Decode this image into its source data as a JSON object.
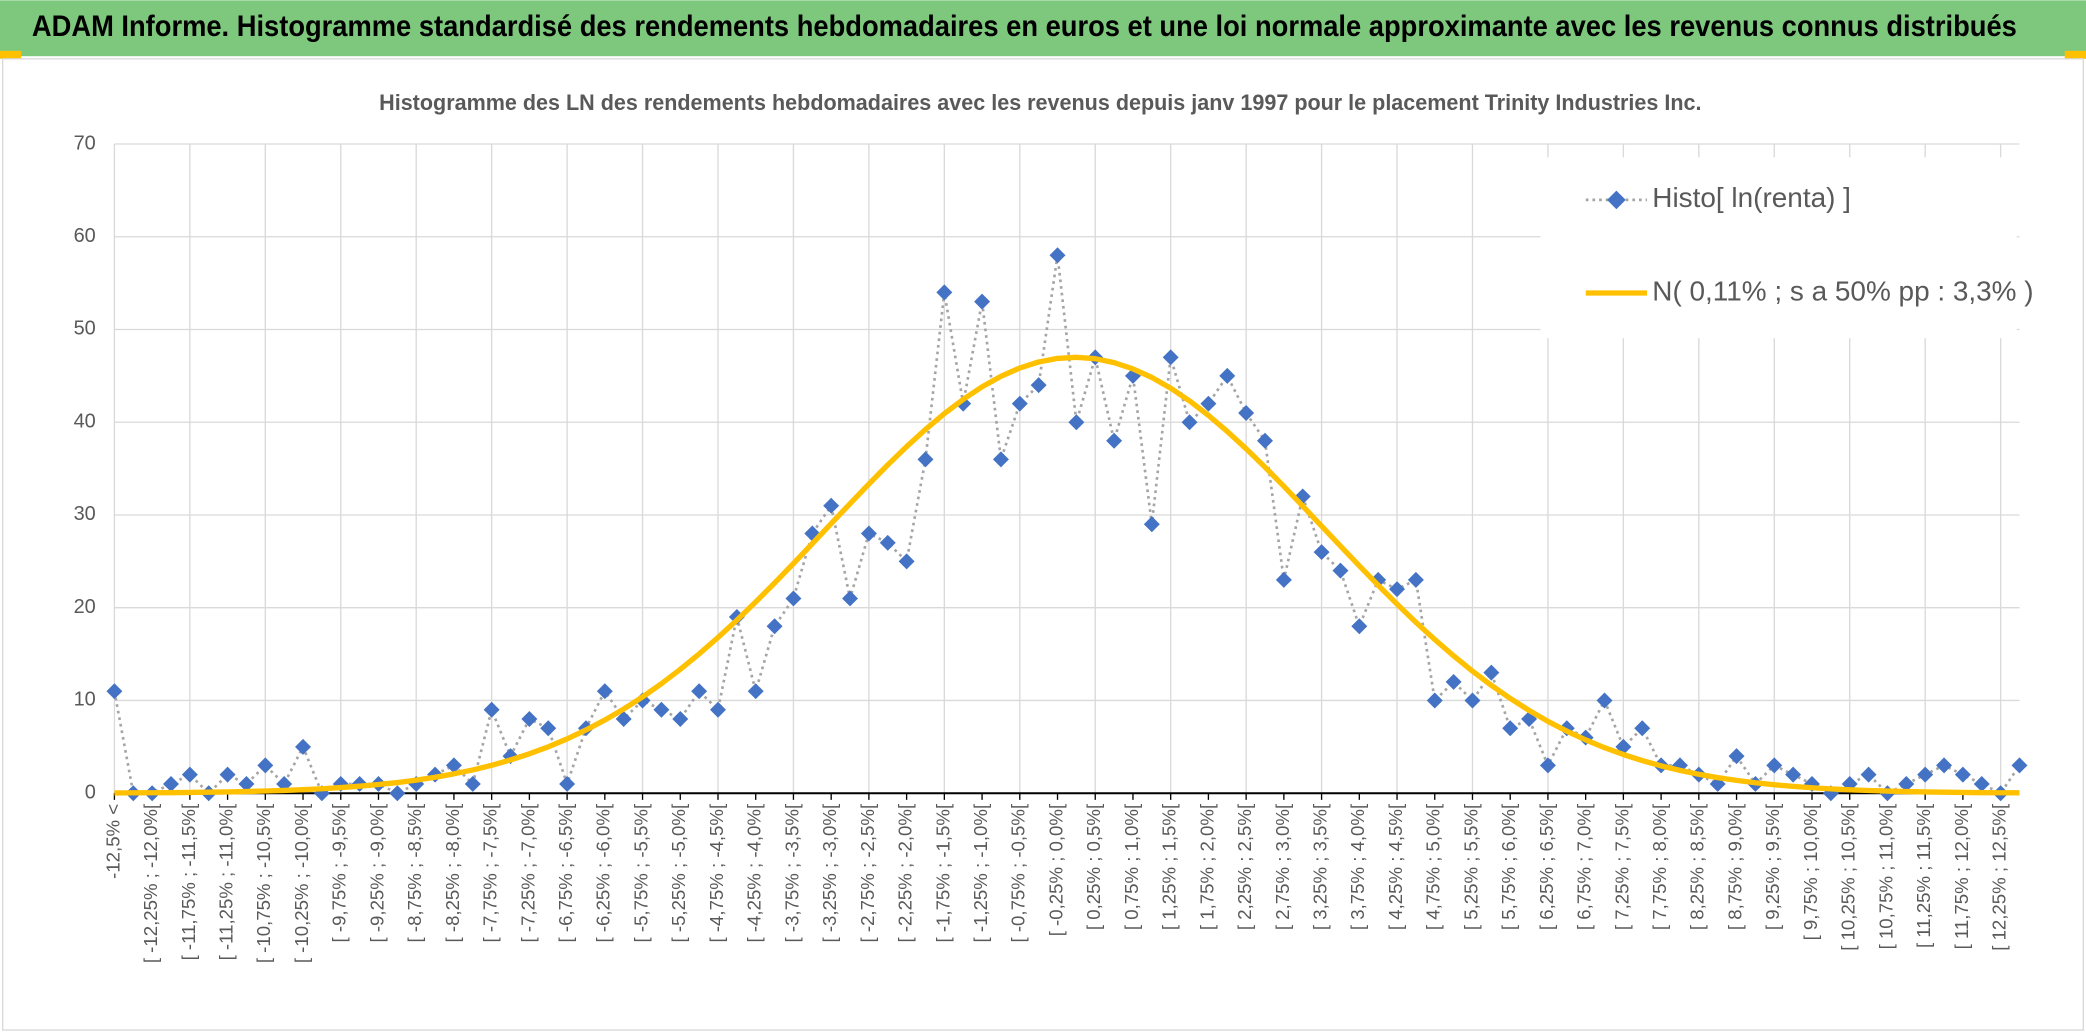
{
  "chart_data": {
    "type": "line",
    "page_title": "ADAM Informe. Histogramme standardisé des rendements hebdomadaires en euros et une loi normale approximante avec les revenus connus distribués",
    "title": "Histogramme des LN des rendements hebdomadaires avec les revenus depuis janv 1997 pour le placement Trinity Industries Inc.",
    "categories": [
      "-12,5% <",
      null,
      "[ -12,25% ; -12,0%[",
      null,
      "[ -11,75% ; -11,5%[",
      null,
      "[ -11,25% ; -11,0%[",
      null,
      "[ -10,75% ; -10,5%[",
      null,
      "[ -10,25% ; -10,0%[",
      null,
      "[ -9,75% ; -9,5%[",
      null,
      "[ -9,25% ; -9,0%[",
      null,
      "[ -8,75% ; -8,5%[",
      null,
      "[ -8,25% ; -8,0%[",
      null,
      "[ -7,75% ; -7,5%[",
      null,
      "[ -7,25% ; -7,0%[",
      null,
      "[ -6,75% ; -6,5%[",
      null,
      "[ -6,25% ; -6,0%[",
      null,
      "[ -5,75% ; -5,5%[",
      null,
      "[ -5,25% ; -5,0%[",
      null,
      "[ -4,75% ; -4,5%[",
      null,
      "[ -4,25% ; -4,0%[",
      null,
      "[ -3,75% ; -3,5%[",
      null,
      "[ -3,25% ; -3,0%[",
      null,
      "[ -2,75% ; -2,5%[",
      null,
      "[ -2,25% ; -2,0%[",
      null,
      "[ -1,75% ; -1,5%[",
      null,
      "[ -1,25% ; -1,0%[",
      null,
      "[ -0,75% ; -0,5%[",
      null,
      "[ -0,25% ; 0,0%[",
      null,
      "[ 0,25% ; 0,5%[",
      null,
      "[ 0,75% ; 1,0%[",
      null,
      "[ 1,25% ; 1,5%[",
      null,
      "[ 1,75% ; 2,0%[",
      null,
      "[ 2,25% ; 2,5%[",
      null,
      "[ 2,75% ; 3,0%[",
      null,
      "[ 3,25% ; 3,5%[",
      null,
      "[ 3,75% ; 4,0%[",
      null,
      "[ 4,25% ; 4,5%[",
      null,
      "[ 4,75% ; 5,0%[",
      null,
      "[ 5,25% ; 5,5%[",
      null,
      "[ 5,75% ; 6,0%[",
      null,
      "[ 6,25% ; 6,5%[",
      null,
      "[ 6,75% ; 7,0%[",
      null,
      "[ 7,25% ; 7,5%[",
      null,
      "[ 7,75% ; 8,0%[",
      null,
      "[ 8,25% ; 8,5%[",
      null,
      "[ 8,75% ; 9,0%[",
      null,
      "[ 9,25% ; 9,5%[",
      null,
      "[ 9,75% ; 10,0%[",
      null,
      "[ 10,25% ; 10,5%[",
      null,
      "[ 10,75% ; 11,0%[",
      null,
      "[ 11,25% ; 11,5%[",
      null,
      "[ 11,75% ; 12,0%[",
      null,
      "[ 12,25% ; 12,5%[",
      null
    ],
    "series": [
      {
        "name": "Histo[ ln(renta) ]",
        "color": "#4472c4",
        "line_color": "#a5a5a5",
        "marker": "diamond",
        "values": [
          11,
          0,
          0,
          1,
          2,
          0,
          2,
          1,
          3,
          1,
          5,
          0,
          1,
          1,
          1,
          0,
          1,
          2,
          3,
          1,
          9,
          4,
          8,
          7,
          1,
          7,
          11,
          8,
          10,
          9,
          8,
          11,
          9,
          19,
          11,
          18,
          21,
          28,
          31,
          21,
          28,
          27,
          25,
          36,
          54,
          42,
          53,
          36,
          42,
          44,
          58,
          40,
          47,
          38,
          45,
          29,
          47,
          40,
          42,
          45,
          41,
          38,
          23,
          32,
          26,
          24,
          18,
          23,
          22,
          23,
          10,
          12,
          10,
          13,
          7,
          8,
          3,
          7,
          6,
          10,
          5,
          7,
          3,
          3,
          2,
          1,
          4,
          1,
          3,
          2,
          1,
          0,
          1,
          2,
          0,
          1,
          2,
          3,
          2,
          1,
          0,
          3
        ]
      },
      {
        "name": "N( 0,11% ; s a 50% pp : 3,3% )",
        "color": "#ffc000",
        "values": [
          0.03,
          0.04,
          0.05,
          0.06,
          0.08,
          0.11,
          0.14,
          0.18,
          0.24,
          0.3,
          0.38,
          0.48,
          0.61,
          0.76,
          0.94,
          1.15,
          1.41,
          1.72,
          2.09,
          2.51,
          3.01,
          3.59,
          4.25,
          5.0,
          5.86,
          6.82,
          7.89,
          9.08,
          10.38,
          11.81,
          13.36,
          15.02,
          16.79,
          18.66,
          20.63,
          22.67,
          24.77,
          26.91,
          29.07,
          31.22,
          33.34,
          35.4,
          37.37,
          39.22,
          40.93,
          42.47,
          43.82,
          44.95,
          45.85,
          46.5,
          46.88,
          47.0,
          46.85,
          46.43,
          45.75,
          44.83,
          43.67,
          42.3,
          40.74,
          39.01,
          37.14,
          35.16,
          33.09,
          30.96,
          28.81,
          26.65,
          24.52,
          22.42,
          20.39,
          18.43,
          16.57,
          14.81,
          13.16,
          11.63,
          10.22,
          8.93,
          7.75,
          6.69,
          5.75,
          4.91,
          4.17,
          3.52,
          2.95,
          2.46,
          2.04,
          1.68,
          1.38,
          1.13,
          0.91,
          0.74,
          0.59,
          0.47,
          0.37,
          0.29,
          0.23,
          0.18,
          0.14,
          0.11,
          0.08,
          0.06,
          0.05,
          0.04
        ]
      }
    ],
    "ylim": [
      0,
      70
    ],
    "yticks": [
      0,
      10,
      20,
      30,
      40,
      50,
      60,
      70
    ],
    "grid": true,
    "legend": "top-right"
  }
}
